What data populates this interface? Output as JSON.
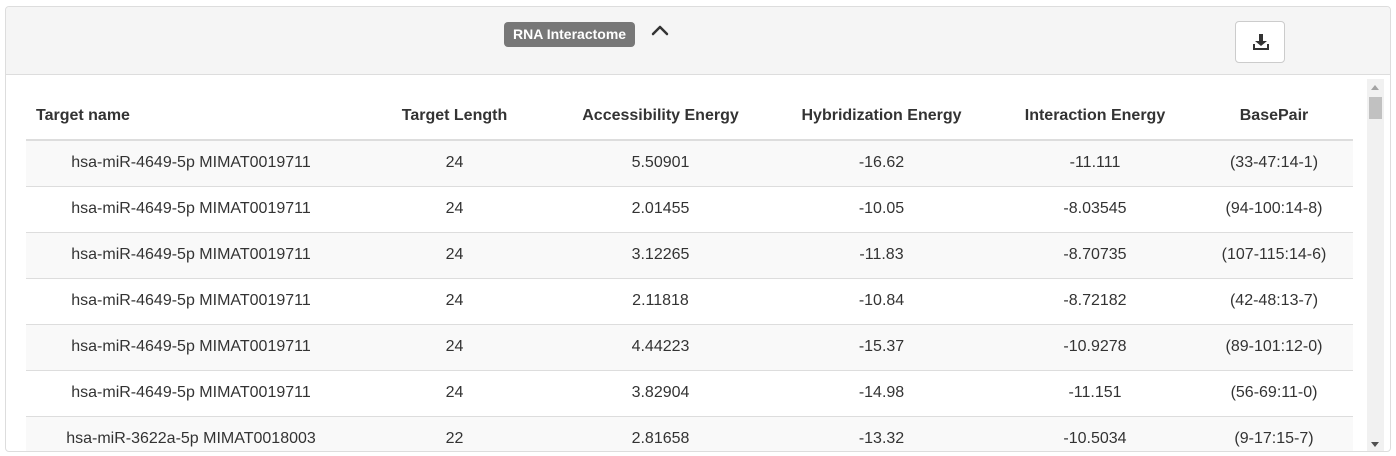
{
  "header": {
    "badge_label": "RNA Interactome",
    "collapse_icon": "chevron-up-icon",
    "download_icon": "download-icon"
  },
  "table": {
    "columns": [
      "Target name",
      "Target Length",
      "Accessibility Energy",
      "Hybridization Energy",
      "Interaction Energy",
      "BasePair"
    ],
    "rows": [
      [
        "hsa-miR-4649-5p MIMAT0019711",
        "24",
        "5.50901",
        "-16.62",
        "-11.111",
        "(33-47:14-1)"
      ],
      [
        "hsa-miR-4649-5p MIMAT0019711",
        "24",
        "2.01455",
        "-10.05",
        "-8.03545",
        "(94-100:14-8)"
      ],
      [
        "hsa-miR-4649-5p MIMAT0019711",
        "24",
        "3.12265",
        "-11.83",
        "-8.70735",
        "(107-115:14-6)"
      ],
      [
        "hsa-miR-4649-5p MIMAT0019711",
        "24",
        "2.11818",
        "-10.84",
        "-8.72182",
        "(42-48:13-7)"
      ],
      [
        "hsa-miR-4649-5p MIMAT0019711",
        "24",
        "4.44223",
        "-15.37",
        "-10.9278",
        "(89-101:12-0)"
      ],
      [
        "hsa-miR-4649-5p MIMAT0019711",
        "24",
        "3.82904",
        "-14.98",
        "-11.151",
        "(56-69:11-0)"
      ],
      [
        "hsa-miR-3622a-5p MIMAT0018003",
        "22",
        "2.81658",
        "-13.32",
        "-10.5034",
        "(9-17:15-7)"
      ]
    ]
  },
  "colors": {
    "badge": "#777777",
    "heading_bg": "#f5f5f5",
    "border": "#dddddd",
    "stripe": "#f9f9f9"
  }
}
